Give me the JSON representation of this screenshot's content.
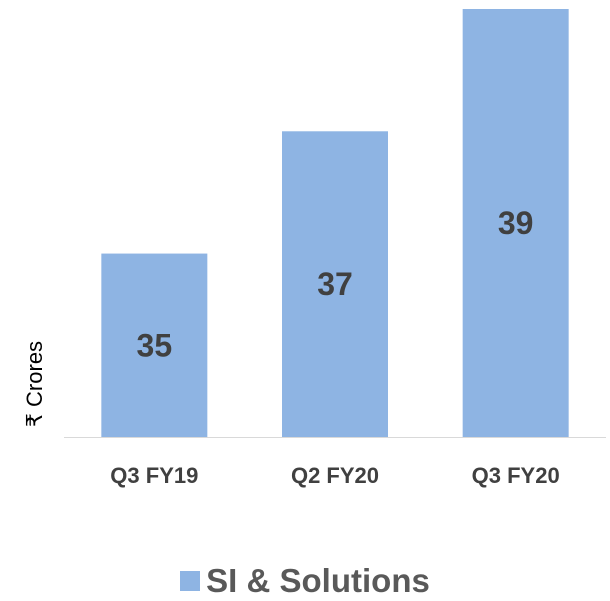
{
  "chart_data": {
    "type": "bar",
    "categories": [
      "Q3 FY19",
      "Q2 FY20",
      "Q3 FY20"
    ],
    "series": [
      {
        "name": "SI & Solutions",
        "values": [
          35,
          37,
          39
        ],
        "color": "#8eb4e3"
      }
    ],
    "data_labels": [
      "35",
      "37",
      "39"
    ],
    "ylabel": "₹ Crores",
    "ylim": [
      32,
      39
    ],
    "grid": false,
    "legend": "bottom",
    "colors": {
      "bar": "#8eb4e3",
      "axis": "#d9d9d9",
      "label": "#404040",
      "legend_text": "#595959"
    }
  }
}
